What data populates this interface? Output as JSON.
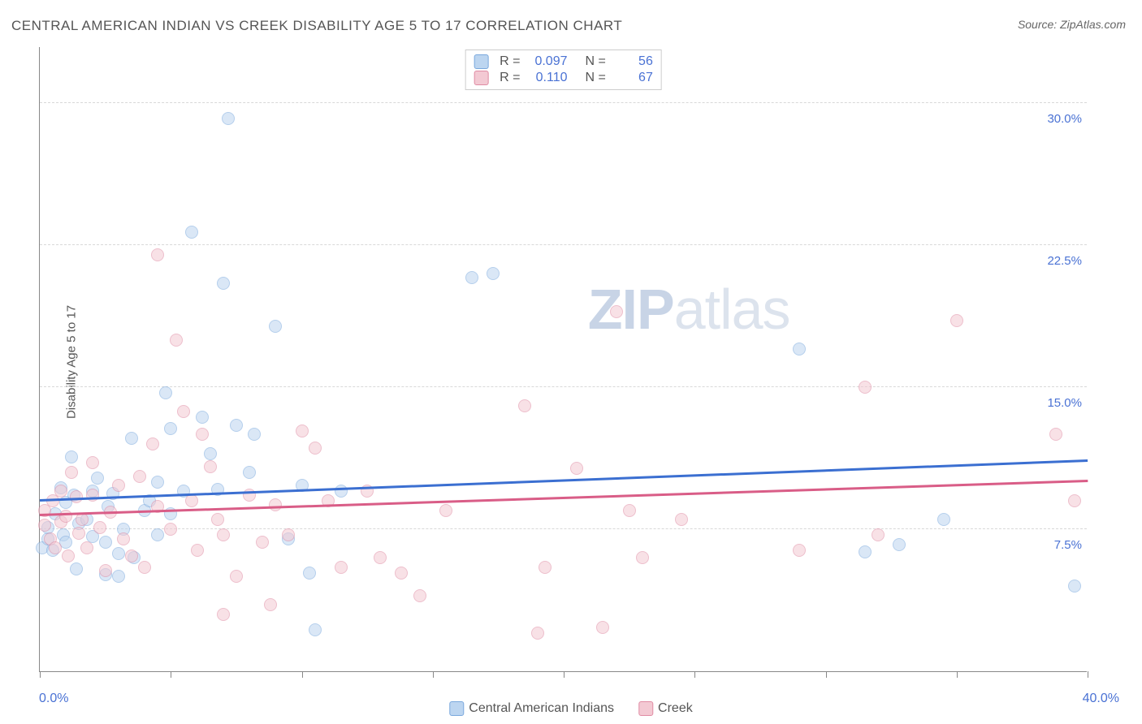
{
  "title": "CENTRAL AMERICAN INDIAN VS CREEK DISABILITY AGE 5 TO 17 CORRELATION CHART",
  "source": "Source: ZipAtlas.com",
  "ylabel": "Disability Age 5 to 17",
  "watermark": "ZIPatlas",
  "chart": {
    "type": "scatter",
    "xlim": [
      0,
      40
    ],
    "ylim": [
      0,
      33
    ],
    "background_color": "#ffffff",
    "grid_color": "#d8d8d8",
    "axis_color": "#888888",
    "label_color": "#4a72d4",
    "text_color": "#555555",
    "marker_radius": 8,
    "marker_opacity": 0.55,
    "ygrid": [
      7.5,
      15.0,
      22.5,
      30.0
    ],
    "ytick_labels": [
      "7.5%",
      "15.0%",
      "22.5%",
      "30.0%"
    ],
    "xticks": [
      0,
      5,
      10,
      15,
      20,
      25,
      30,
      35,
      40
    ],
    "xlabel_min": "0.0%",
    "xlabel_max": "40.0%",
    "series": [
      {
        "name": "Central American Indians",
        "fill": "#bcd5f0",
        "stroke": "#7aa8dd",
        "trend_color": "#3b6fd1",
        "R": "0.097",
        "N": "56",
        "trend": {
          "y_at_x0": 9.0,
          "y_at_xmax": 11.1
        },
        "points": [
          [
            0.1,
            6.5
          ],
          [
            0.3,
            7.0
          ],
          [
            0.3,
            7.6
          ],
          [
            0.5,
            6.4
          ],
          [
            0.6,
            8.3
          ],
          [
            0.8,
            9.7
          ],
          [
            0.9,
            7.2
          ],
          [
            1.0,
            6.8
          ],
          [
            1.0,
            8.9
          ],
          [
            1.2,
            11.3
          ],
          [
            1.3,
            9.3
          ],
          [
            1.4,
            5.4
          ],
          [
            1.5,
            7.8
          ],
          [
            1.8,
            8.0
          ],
          [
            2.0,
            9.5
          ],
          [
            2.0,
            7.1
          ],
          [
            2.2,
            10.2
          ],
          [
            2.5,
            5.1
          ],
          [
            2.5,
            6.8
          ],
          [
            2.6,
            8.7
          ],
          [
            2.8,
            9.4
          ],
          [
            3.0,
            6.2
          ],
          [
            3.0,
            5.0
          ],
          [
            3.2,
            7.5
          ],
          [
            3.5,
            12.3
          ],
          [
            3.6,
            6.0
          ],
          [
            4.0,
            8.5
          ],
          [
            4.2,
            9.0
          ],
          [
            4.5,
            10.0
          ],
          [
            4.5,
            7.2
          ],
          [
            4.8,
            14.7
          ],
          [
            5.0,
            8.3
          ],
          [
            5.0,
            12.8
          ],
          [
            5.5,
            9.5
          ],
          [
            5.8,
            23.2
          ],
          [
            6.2,
            13.4
          ],
          [
            6.5,
            11.5
          ],
          [
            6.8,
            9.6
          ],
          [
            7.0,
            20.5
          ],
          [
            7.2,
            29.2
          ],
          [
            7.5,
            13.0
          ],
          [
            8.0,
            10.5
          ],
          [
            8.2,
            12.5
          ],
          [
            9.0,
            18.2
          ],
          [
            9.5,
            7.0
          ],
          [
            10.0,
            9.8
          ],
          [
            10.3,
            5.2
          ],
          [
            10.5,
            2.2
          ],
          [
            11.5,
            9.5
          ],
          [
            16.5,
            20.8
          ],
          [
            17.3,
            21.0
          ],
          [
            29.0,
            17.0
          ],
          [
            31.5,
            6.3
          ],
          [
            32.8,
            6.7
          ],
          [
            34.5,
            8.0
          ],
          [
            39.5,
            4.5
          ]
        ]
      },
      {
        "name": "Creek",
        "fill": "#f3c9d3",
        "stroke": "#e08ba3",
        "trend_color": "#d95d87",
        "R": "0.110",
        "N": "67",
        "trend": {
          "y_at_x0": 8.2,
          "y_at_xmax": 10.0
        },
        "points": [
          [
            0.2,
            7.7
          ],
          [
            0.2,
            8.5
          ],
          [
            0.4,
            7.0
          ],
          [
            0.5,
            9.0
          ],
          [
            0.6,
            6.5
          ],
          [
            0.8,
            7.9
          ],
          [
            0.8,
            9.5
          ],
          [
            1.0,
            8.2
          ],
          [
            1.1,
            6.1
          ],
          [
            1.2,
            10.5
          ],
          [
            1.4,
            9.2
          ],
          [
            1.5,
            7.3
          ],
          [
            1.6,
            8.0
          ],
          [
            1.8,
            6.5
          ],
          [
            2.0,
            11.0
          ],
          [
            2.0,
            9.3
          ],
          [
            2.3,
            7.6
          ],
          [
            2.5,
            5.3
          ],
          [
            2.7,
            8.4
          ],
          [
            3.0,
            9.8
          ],
          [
            3.2,
            7.0
          ],
          [
            3.5,
            6.1
          ],
          [
            3.8,
            10.3
          ],
          [
            4.0,
            5.5
          ],
          [
            4.3,
            12.0
          ],
          [
            4.5,
            8.7
          ],
          [
            4.5,
            22.0
          ],
          [
            5.0,
            7.5
          ],
          [
            5.2,
            17.5
          ],
          [
            5.5,
            13.7
          ],
          [
            5.8,
            9.0
          ],
          [
            6.0,
            6.4
          ],
          [
            6.2,
            12.5
          ],
          [
            6.5,
            10.8
          ],
          [
            6.8,
            8.0
          ],
          [
            7.0,
            7.2
          ],
          [
            7.0,
            3.0
          ],
          [
            7.5,
            5.0
          ],
          [
            8.0,
            9.3
          ],
          [
            8.5,
            6.8
          ],
          [
            8.8,
            3.5
          ],
          [
            9.0,
            8.8
          ],
          [
            9.5,
            7.2
          ],
          [
            10.0,
            12.7
          ],
          [
            10.5,
            11.8
          ],
          [
            11.0,
            9.0
          ],
          [
            11.5,
            5.5
          ],
          [
            12.5,
            9.5
          ],
          [
            13.0,
            6.0
          ],
          [
            13.8,
            5.2
          ],
          [
            14.5,
            4.0
          ],
          [
            15.5,
            8.5
          ],
          [
            18.5,
            14.0
          ],
          [
            19.0,
            2.0
          ],
          [
            19.3,
            5.5
          ],
          [
            20.5,
            10.7
          ],
          [
            21.5,
            2.3
          ],
          [
            22.0,
            19.0
          ],
          [
            22.5,
            8.5
          ],
          [
            23.0,
            6.0
          ],
          [
            24.5,
            8.0
          ],
          [
            29.0,
            6.4
          ],
          [
            31.5,
            15.0
          ],
          [
            32.0,
            7.2
          ],
          [
            35.0,
            18.5
          ],
          [
            38.8,
            12.5
          ],
          [
            39.5,
            9.0
          ]
        ]
      }
    ]
  },
  "bottom_legend": [
    {
      "label": "Central American Indians",
      "fill": "#bcd5f0",
      "stroke": "#7aa8dd"
    },
    {
      "label": "Creek",
      "fill": "#f3c9d3",
      "stroke": "#e08ba3"
    }
  ]
}
